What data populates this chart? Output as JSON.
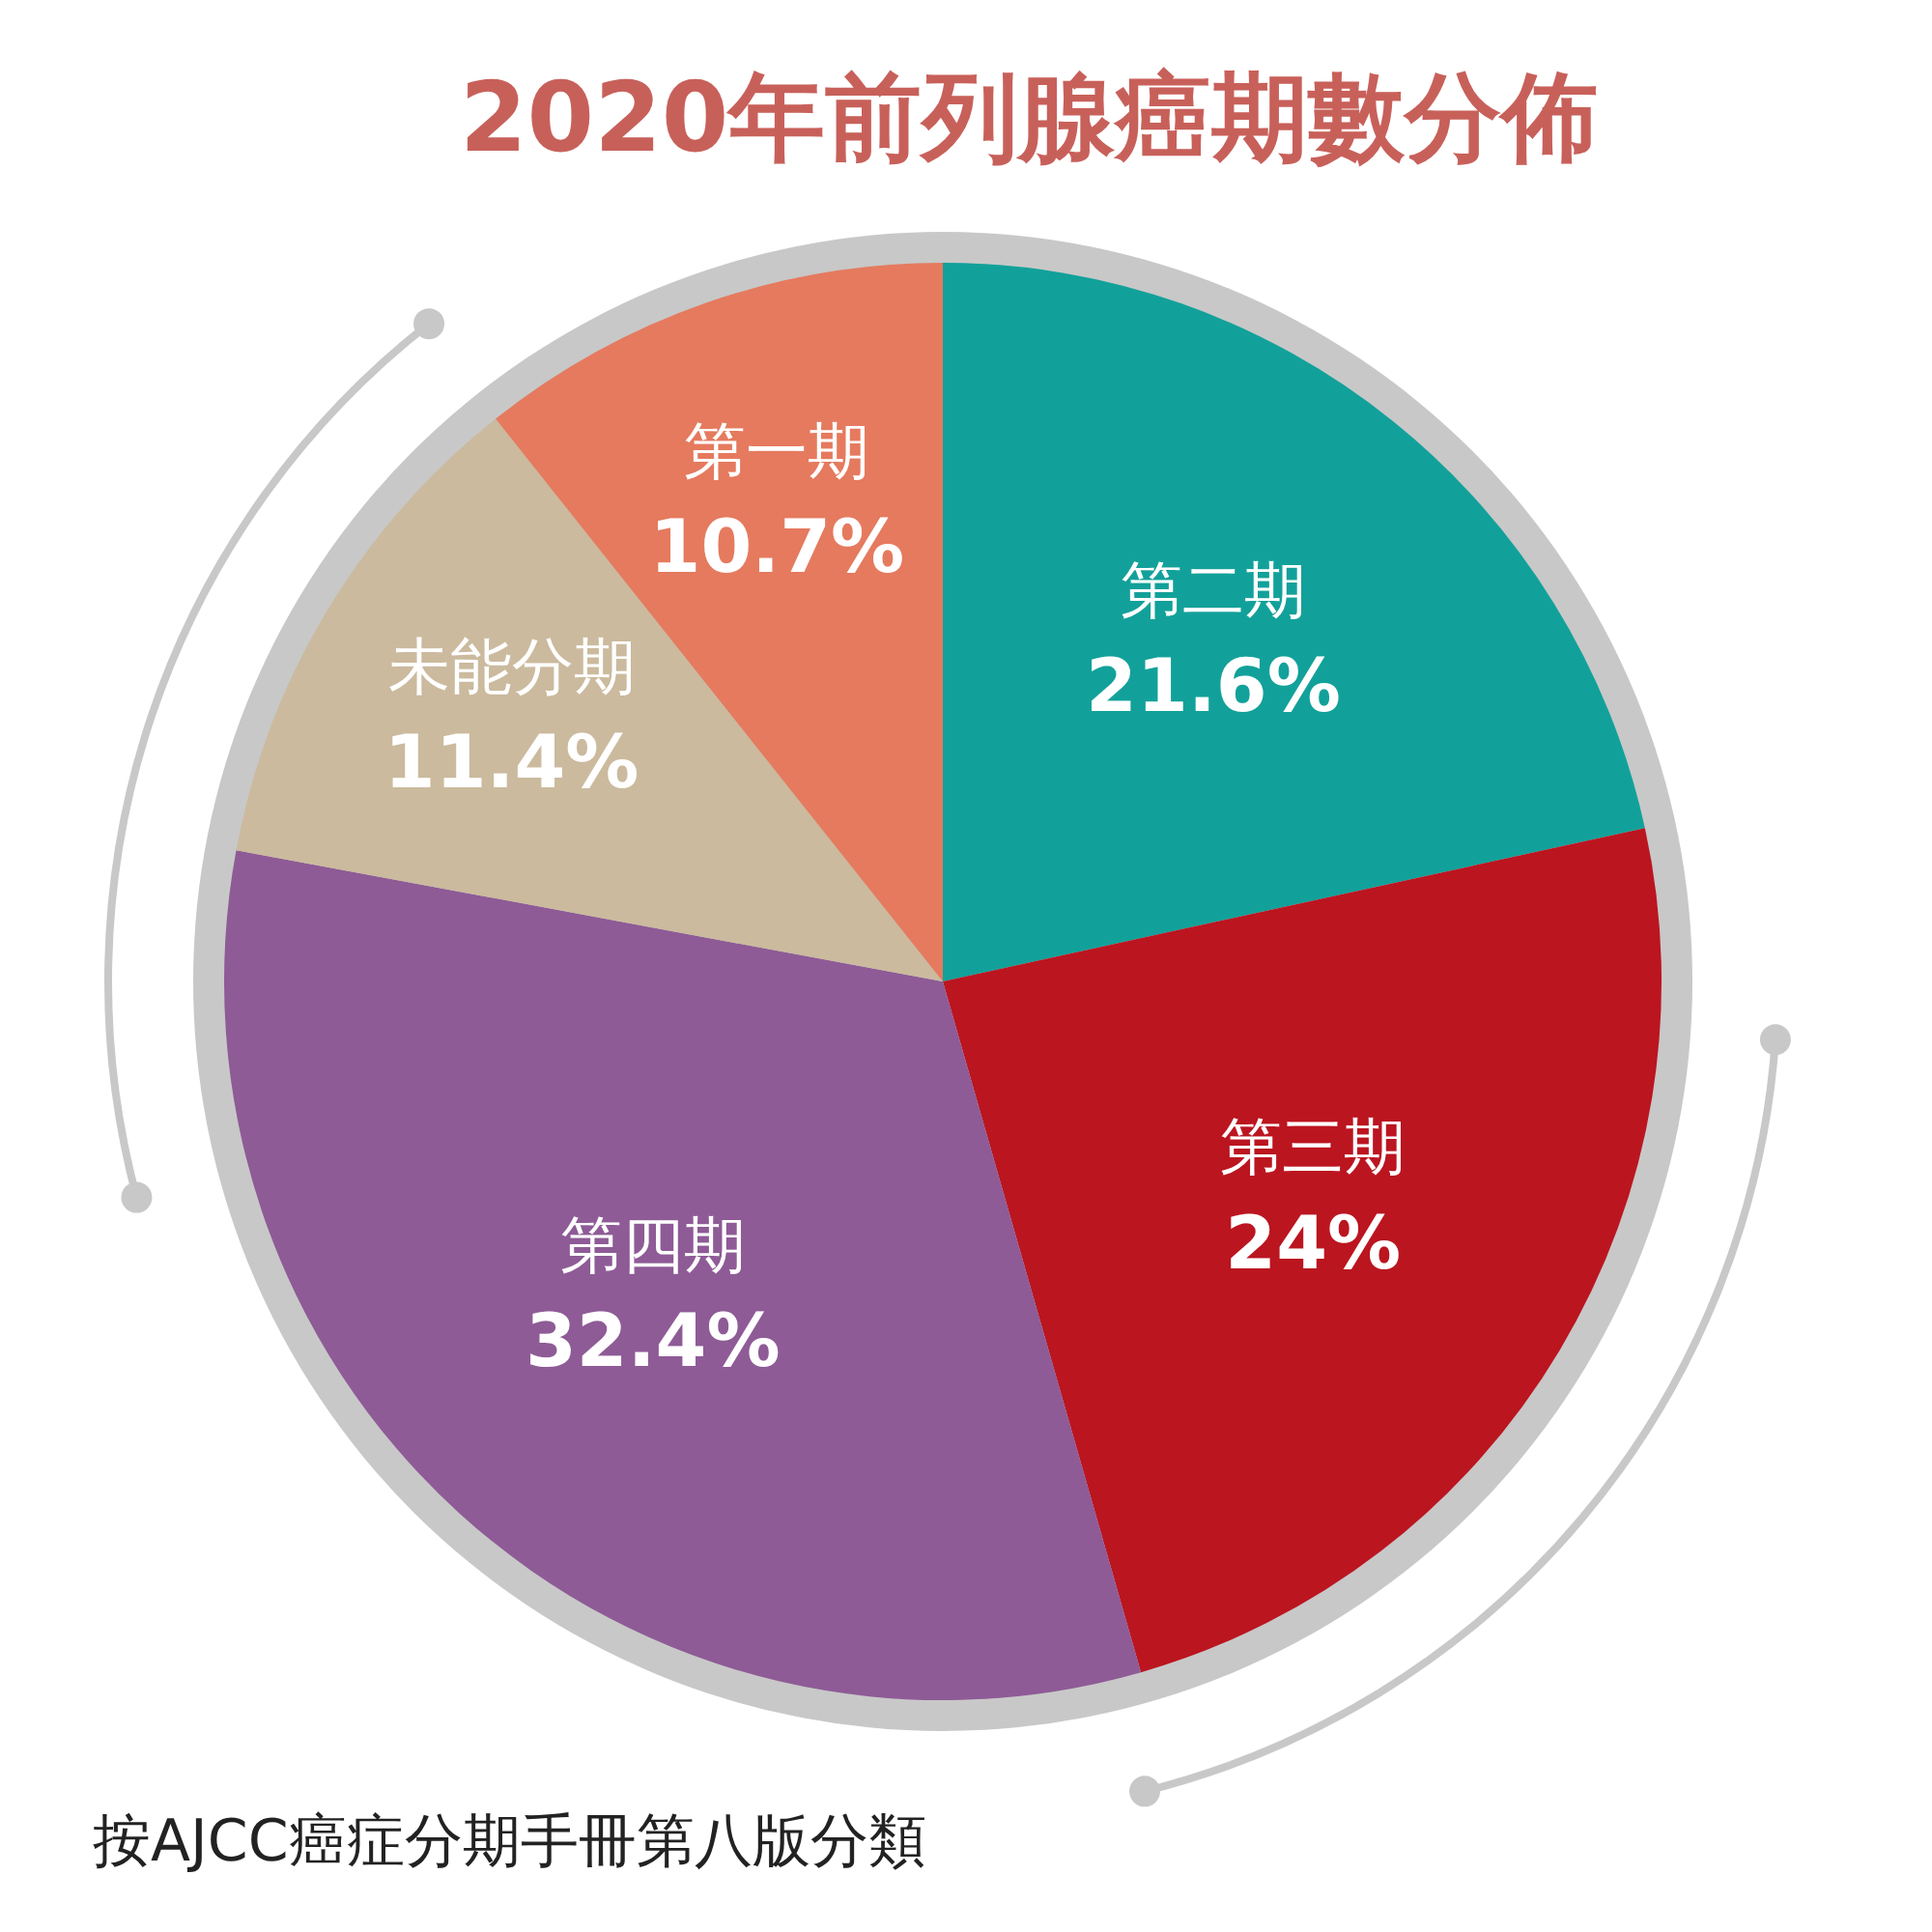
{
  "chart_data": {
    "type": "pie",
    "title": "2020年前列腺癌期數分佈",
    "categories": [
      "第二期",
      "第三期",
      "第四期",
      "未能分期",
      "第一期"
    ],
    "values": [
      21.6,
      24,
      32.4,
      11.4,
      10.7
    ],
    "value_labels": [
      "21.6%",
      "24%",
      "32.4%",
      "11.4%",
      "10.7%"
    ],
    "colors": [
      "#12a19a",
      "#bb1520",
      "#8e5b96",
      "#cbba9e",
      "#e57a5e"
    ],
    "legend": false,
    "annotations": [
      "按AJCC癌症分期手冊第八版分類"
    ]
  }
}
